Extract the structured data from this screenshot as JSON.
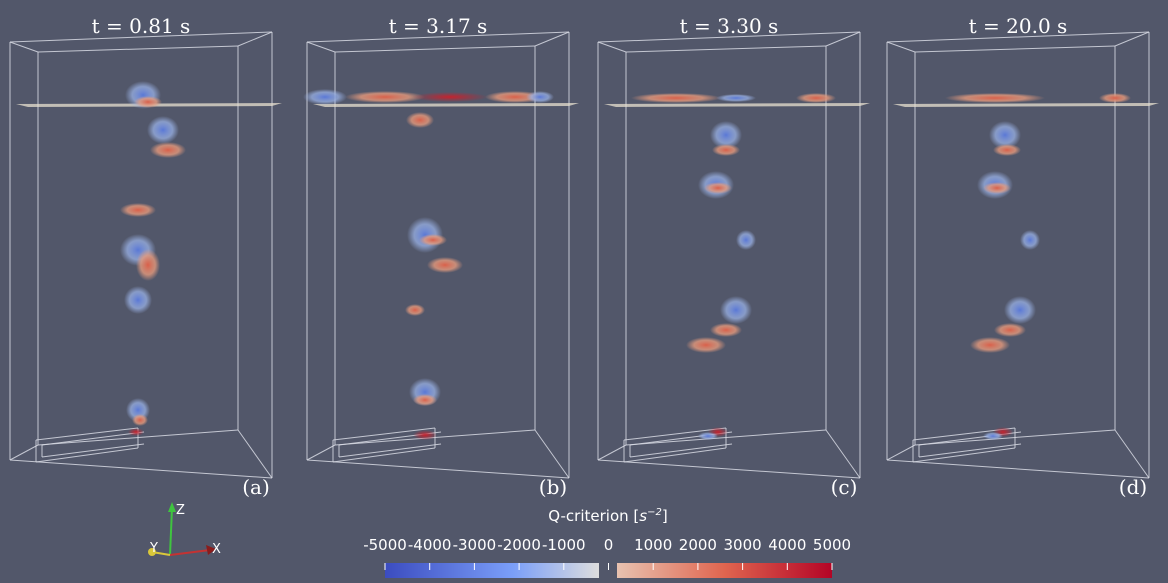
{
  "panels": [
    {
      "title": "t = 0.81 s",
      "label": "(a)"
    },
    {
      "title": "t = 3.17 s",
      "label": "(b)"
    },
    {
      "title": "t = 3.30 s",
      "label": "(c)"
    },
    {
      "title": "t = 20.0 s",
      "label": "(d)"
    }
  ],
  "colorbar": {
    "title_parts": [
      "Q-criterion [",
      "s",
      "−2",
      "]"
    ],
    "ticks": [
      -5000,
      -4000,
      -3000,
      -2000,
      -1000,
      0,
      1000,
      2000,
      3000,
      4000,
      5000
    ]
  },
  "axes": {
    "z": "Z",
    "y": "Y",
    "x": "X"
  }
}
